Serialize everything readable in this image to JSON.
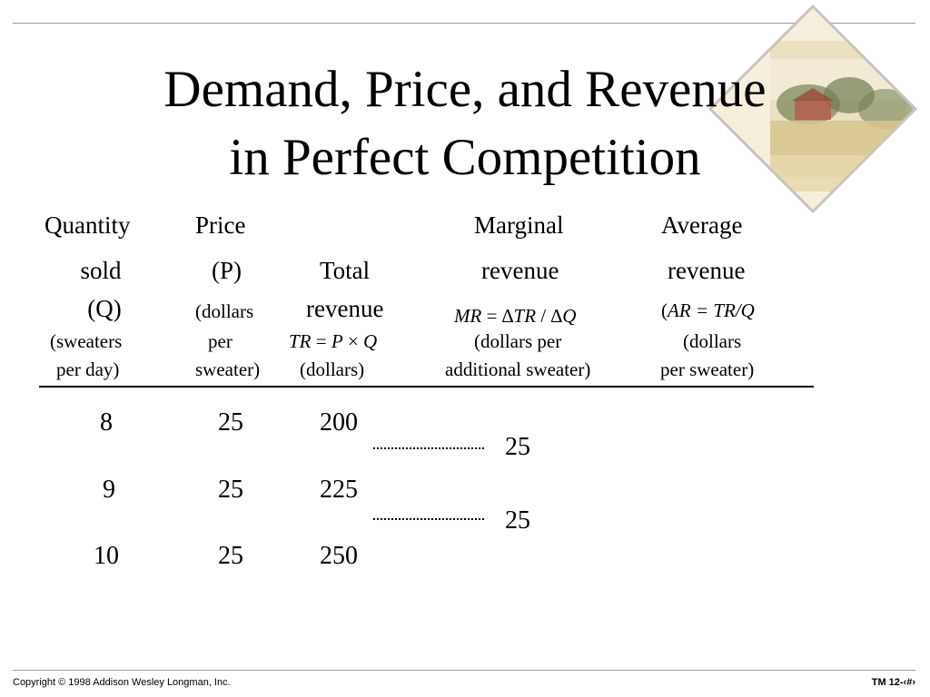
{
  "slide": {
    "title_line1": "Demand, Price, and Revenue",
    "title_line2": "in Perfect Competition"
  },
  "headers": {
    "quantity": {
      "line1": "Quantity",
      "line2": "sold",
      "line3": "(Q)",
      "line4": "(sweaters",
      "line5": "per day)"
    },
    "price": {
      "line1": "Price",
      "line2": "(P)",
      "line3": "(dollars",
      "line4": "per",
      "line5": "sweater)"
    },
    "total_revenue": {
      "line1": "Total",
      "line2": "revenue",
      "formula_tr": "TR",
      "formula_eq": " = ",
      "formula_p": "P",
      "formula_times": " × ",
      "formula_q": "Q",
      "line4": "(dollars)"
    },
    "marginal_revenue": {
      "line1": "Marginal",
      "line2": "revenue",
      "formula_mr": "MR",
      "formula_rest": " = ∆",
      "formula_tr": "TR",
      "formula_div": " / ∆",
      "formula_q": "Q",
      "line4": "(dollars per",
      "line5": "additional sweater)"
    },
    "average_revenue": {
      "line1": "Average",
      "line2": "revenue",
      "formula_open": "(",
      "formula_ar": "AR = TR/Q",
      "line4": "(dollars",
      "line5": "per sweater)"
    }
  },
  "rows": [
    {
      "quantity": "8",
      "price": "25",
      "total_revenue": "200"
    },
    {
      "quantity": "9",
      "price": "25",
      "total_revenue": "225"
    },
    {
      "quantity": "10",
      "price": "25",
      "total_revenue": "250"
    }
  ],
  "marginal_values": [
    "25",
    "25"
  ],
  "footer": {
    "copyright": "Copyright © 1998 Addison Wesley Longman, Inc.",
    "page_label": "TM 12-‹#›"
  }
}
